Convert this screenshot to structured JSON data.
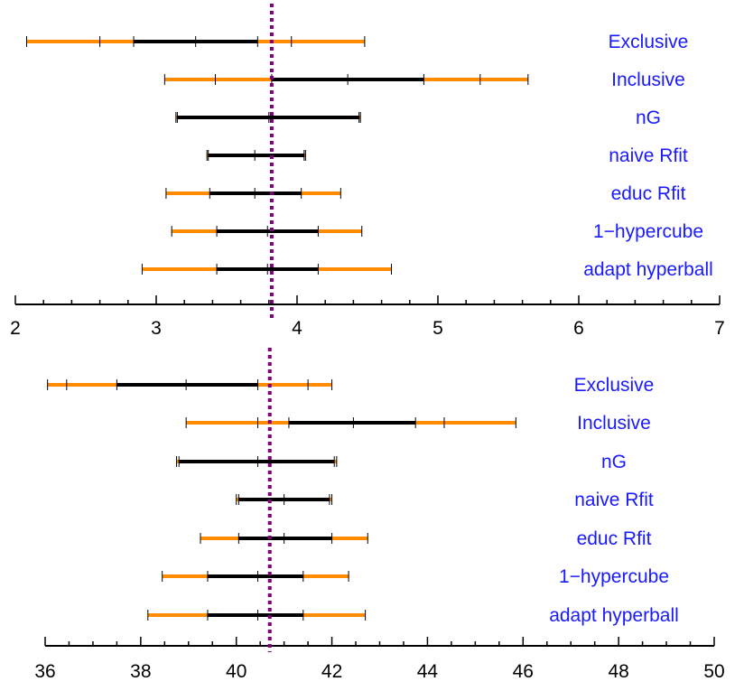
{
  "colors": {
    "inner_interval": "#000000",
    "outer_interval": "#ff8c00",
    "reference_line": "#800080",
    "labels": "#1a1aff",
    "axis": "#000000"
  },
  "chart_data": [
    {
      "type": "interval",
      "title": "",
      "xlabel": "",
      "xlim": [
        2,
        7
      ],
      "major_ticks": [
        2,
        3,
        4,
        5,
        6,
        7
      ],
      "tick_labels": [
        "2",
        "3",
        "4",
        "5",
        "6",
        "7"
      ],
      "minor_tick_step": 0.2,
      "reference_value": 3.82,
      "reference_line_style": "dotted",
      "rows": [
        {
          "label": "Exclusive",
          "outer": [
            2.08,
            4.48
          ],
          "inner": [
            2.84,
            3.72
          ],
          "ticks": [
            2.08,
            2.6,
            2.84,
            3.28,
            3.72,
            3.96,
            4.48
          ]
        },
        {
          "label": "Inclusive",
          "outer": [
            3.06,
            5.64
          ],
          "inner": [
            3.82,
            4.9
          ],
          "ticks": [
            3.06,
            3.42,
            3.82,
            4.36,
            4.9,
            5.3,
            5.64
          ]
        },
        {
          "label": "nG",
          "outer": [
            3.14,
            4.45
          ],
          "inner": [
            3.15,
            4.44
          ],
          "ticks": [
            3.14,
            3.15,
            3.8,
            4.44,
            4.45
          ]
        },
        {
          "label": "naive Rfit",
          "outer": [
            3.36,
            4.06
          ],
          "inner": [
            3.37,
            4.05
          ],
          "ticks": [
            3.36,
            3.37,
            3.7,
            4.05,
            4.06
          ]
        },
        {
          "label": "educ Rfit",
          "outer": [
            3.07,
            4.31
          ],
          "inner": [
            3.38,
            4.03
          ],
          "ticks": [
            3.07,
            3.38,
            3.7,
            4.03,
            4.31
          ]
        },
        {
          "label": "1−hypercube",
          "outer": [
            3.11,
            4.46
          ],
          "inner": [
            3.43,
            4.15
          ],
          "ticks": [
            3.11,
            3.43,
            3.79,
            4.15,
            4.46
          ]
        },
        {
          "label": "adapt hyperball",
          "outer": [
            2.9,
            4.67
          ],
          "inner": [
            3.43,
            4.15
          ],
          "ticks": [
            2.9,
            3.43,
            3.79,
            4.15,
            4.67
          ]
        }
      ]
    },
    {
      "type": "interval",
      "title": "",
      "xlabel": "",
      "xlim": [
        36,
        50
      ],
      "major_ticks": [
        36,
        38,
        40,
        42,
        44,
        46,
        48,
        50
      ],
      "tick_labels": [
        "36",
        "38",
        "40",
        "42",
        "44",
        "46",
        "48",
        "50"
      ],
      "minor_tick_step": 0.5,
      "reference_value": 40.7,
      "reference_line_style": "dotted",
      "rows": [
        {
          "label": "Exclusive",
          "outer": [
            36.05,
            42.0
          ],
          "inner": [
            37.5,
            40.45
          ],
          "ticks": [
            36.05,
            36.45,
            37.5,
            38.95,
            40.45,
            41.5,
            42.0
          ]
        },
        {
          "label": "Inclusive",
          "outer": [
            38.95,
            45.85
          ],
          "inner": [
            41.1,
            43.75
          ],
          "ticks": [
            38.95,
            40.45,
            41.1,
            42.45,
            43.75,
            44.35,
            45.85
          ]
        },
        {
          "label": "nG",
          "outer": [
            38.75,
            42.1
          ],
          "inner": [
            38.8,
            42.05
          ],
          "ticks": [
            38.75,
            38.8,
            40.45,
            42.05,
            42.1
          ]
        },
        {
          "label": "naive Rfit",
          "outer": [
            40.0,
            42.0
          ],
          "inner": [
            40.05,
            41.95
          ],
          "ticks": [
            40.0,
            40.05,
            41.0,
            41.95,
            42.0
          ]
        },
        {
          "label": "educ Rfit",
          "outer": [
            39.25,
            42.75
          ],
          "inner": [
            40.05,
            42.0
          ],
          "ticks": [
            39.25,
            40.05,
            41.0,
            42.0,
            42.75
          ]
        },
        {
          "label": "1−hypercube",
          "outer": [
            38.45,
            42.35
          ],
          "inner": [
            39.4,
            41.4
          ],
          "ticks": [
            38.45,
            39.4,
            40.45,
            41.4,
            42.35
          ]
        },
        {
          "label": "adapt hyperball",
          "outer": [
            38.15,
            42.7
          ],
          "inner": [
            39.4,
            41.4
          ],
          "ticks": [
            38.15,
            39.4,
            40.45,
            41.4,
            42.7
          ]
        }
      ]
    }
  ]
}
